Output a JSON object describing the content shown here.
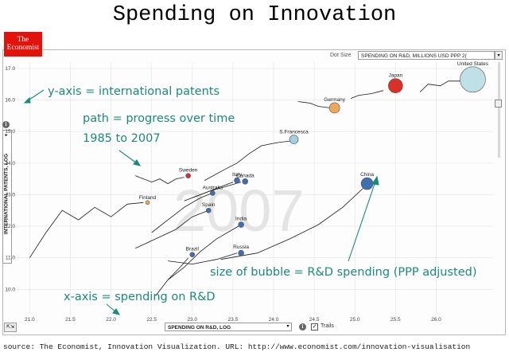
{
  "page_title": "Spending on Innovation",
  "logo": {
    "line1": "The",
    "line2": "Economist"
  },
  "controls": {
    "dot_size_label": "Dot Size",
    "dot_size_value": "SPENDING ON R&D, MILLIONS USD PPP 2(",
    "x_axis_select": "SPENDING ON R&D, LOG",
    "y_axis_select": "INTERNATIONAL PATENTS, LOG",
    "trails_label": "Trails",
    "trails_checked": "✓"
  },
  "source": "source: The Economist, Innovation Visualization. URL: http://www.economist.com/innovation-visualisation",
  "colors": {
    "annotation": "#1a8a7a",
    "blue_bubble": "#3f6fb3",
    "trail": "#1a1a1a"
  },
  "chart_data": {
    "type": "scatter",
    "title": "Spending on Innovation",
    "year_watermark": "2007",
    "xlabel": "SPENDING ON R&D, LOG",
    "ylabel": "INTERNATIONAL PATENTS, LOG",
    "xlim": [
      20.85,
      26.7
    ],
    "ylim": [
      9.2,
      17.2
    ],
    "x_ticks": [
      "21.0",
      "21.5",
      "22.0",
      "22.5",
      "23.0",
      "23.5",
      "24.0",
      "24.5",
      "25.0",
      "25.5",
      "26.0"
    ],
    "y_ticks": [
      "10.0",
      "11.0",
      "12.0",
      "13.0",
      "14.0",
      "15.0",
      "16.0",
      "17.0"
    ],
    "points": [
      {
        "name": "United States",
        "x": 26.45,
        "y": 16.65,
        "r": 16,
        "color": "#bfe0e6"
      },
      {
        "name": "Japan",
        "x": 25.5,
        "y": 16.45,
        "r": 9,
        "color": "#d9302a"
      },
      {
        "name": "Germany",
        "x": 24.75,
        "y": 15.75,
        "r": 6.5,
        "color": "#f0a75a"
      },
      {
        "name": "S.Francesca",
        "x": 24.25,
        "y": 14.75,
        "r": 5.5,
        "color": "#9fd0dc"
      },
      {
        "name": "China",
        "x": 25.15,
        "y": 13.35,
        "r": 7.5,
        "color": "#3f6fb3"
      },
      {
        "name": "Sweden",
        "x": 22.95,
        "y": 13.6,
        "r": 3,
        "color": "#d9302a"
      },
      {
        "name": "Italy",
        "x": 23.55,
        "y": 13.45,
        "r": 3.5,
        "color": "#3f6fb3"
      },
      {
        "name": "Canada",
        "x": 23.65,
        "y": 13.42,
        "r": 3.5,
        "color": "#3f6fb3"
      },
      {
        "name": "Australia",
        "x": 23.25,
        "y": 13.05,
        "r": 3,
        "color": "#3f6fb3"
      },
      {
        "name": "Finland",
        "x": 22.45,
        "y": 12.75,
        "r": 2.5,
        "color": "#f0a75a"
      },
      {
        "name": "Spain",
        "x": 23.2,
        "y": 12.5,
        "r": 3,
        "color": "#3f6fb3"
      },
      {
        "name": "India",
        "x": 23.6,
        "y": 12.05,
        "r": 3.5,
        "color": "#3f6fb3"
      },
      {
        "name": "Brazil",
        "x": 23.0,
        "y": 11.1,
        "r": 3,
        "color": "#3f6fb3"
      },
      {
        "name": "Russia",
        "x": 23.6,
        "y": 11.15,
        "r": 3.5,
        "color": "#3f6fb3"
      }
    ],
    "trails": [
      {
        "name": "United States",
        "points": [
          [
            25.8,
            16.25
          ],
          [
            25.9,
            16.5
          ],
          [
            26.05,
            16.45
          ],
          [
            26.15,
            16.6
          ],
          [
            26.35,
            16.6
          ]
        ]
      },
      {
        "name": "Japan",
        "points": [
          [
            24.95,
            16.05
          ],
          [
            25.05,
            16.15
          ],
          [
            25.2,
            16.2
          ],
          [
            25.35,
            16.3
          ]
        ]
      },
      {
        "name": "Germany",
        "points": [
          [
            24.3,
            15.95
          ],
          [
            24.45,
            15.9
          ],
          [
            24.55,
            15.8
          ],
          [
            24.7,
            15.75
          ]
        ]
      },
      {
        "name": "S.Francesca",
        "points": [
          [
            23.15,
            13.45
          ],
          [
            23.4,
            13.8
          ],
          [
            23.55,
            14.0
          ],
          [
            23.7,
            14.3
          ],
          [
            23.85,
            14.55
          ],
          [
            24.05,
            14.65
          ],
          [
            24.2,
            14.7
          ]
        ]
      },
      {
        "name": "China",
        "points": [
          [
            23.35,
            10.95
          ],
          [
            23.8,
            11.15
          ],
          [
            24.2,
            11.6
          ],
          [
            24.55,
            12.05
          ],
          [
            24.85,
            12.6
          ],
          [
            25.1,
            13.2
          ]
        ]
      },
      {
        "name": "Sweden",
        "points": [
          [
            22.3,
            13.6
          ],
          [
            22.5,
            13.4
          ],
          [
            22.6,
            13.5
          ],
          [
            22.7,
            13.35
          ],
          [
            22.8,
            13.5
          ],
          [
            22.9,
            13.55
          ]
        ]
      },
      {
        "name": "Finland",
        "points": [
          [
            21.0,
            11.0
          ],
          [
            21.2,
            11.8
          ],
          [
            21.4,
            12.5
          ],
          [
            21.6,
            12.2
          ],
          [
            21.8,
            12.6
          ],
          [
            22.0,
            12.3
          ],
          [
            22.2,
            12.7
          ],
          [
            22.4,
            12.75
          ]
        ]
      },
      {
        "name": "Italy",
        "points": [
          [
            22.9,
            12.8
          ],
          [
            23.1,
            13.0
          ],
          [
            23.3,
            13.2
          ],
          [
            23.5,
            13.4
          ]
        ]
      },
      {
        "name": "Canada",
        "points": [
          [
            23.0,
            12.9
          ],
          [
            23.2,
            13.1
          ],
          [
            23.4,
            13.25
          ],
          [
            23.6,
            13.4
          ]
        ]
      },
      {
        "name": "Australia",
        "points": [
          [
            22.5,
            11.8
          ],
          [
            22.7,
            12.2
          ],
          [
            22.9,
            12.6
          ],
          [
            23.1,
            12.9
          ],
          [
            23.25,
            13.05
          ]
        ]
      },
      {
        "name": "Spain",
        "points": [
          [
            22.3,
            11.3
          ],
          [
            22.55,
            11.6
          ],
          [
            22.8,
            11.9
          ],
          [
            23.0,
            12.3
          ],
          [
            23.2,
            12.5
          ]
        ]
      },
      {
        "name": "India",
        "points": [
          [
            22.7,
            10.3
          ],
          [
            22.9,
            10.7
          ],
          [
            23.1,
            11.2
          ],
          [
            23.3,
            11.6
          ],
          [
            23.5,
            11.9
          ],
          [
            23.6,
            12.05
          ]
        ]
      },
      {
        "name": "Brazil",
        "points": [
          [
            22.55,
            9.8
          ],
          [
            22.7,
            10.3
          ],
          [
            22.85,
            10.7
          ],
          [
            22.95,
            11.0
          ]
        ]
      },
      {
        "name": "Russia",
        "points": [
          [
            22.7,
            10.9
          ],
          [
            23.0,
            10.8
          ],
          [
            23.3,
            10.95
          ],
          [
            23.55,
            11.15
          ]
        ]
      }
    ]
  },
  "annotations": [
    {
      "text": "y-axis = international patents"
    },
    {
      "text": "path = progress over time"
    },
    {
      "text": "1985 to 2007"
    },
    {
      "text": "size of bubble = R&D spending (PPP adjusted)"
    },
    {
      "text": "x-axis = spending on R&D"
    }
  ]
}
